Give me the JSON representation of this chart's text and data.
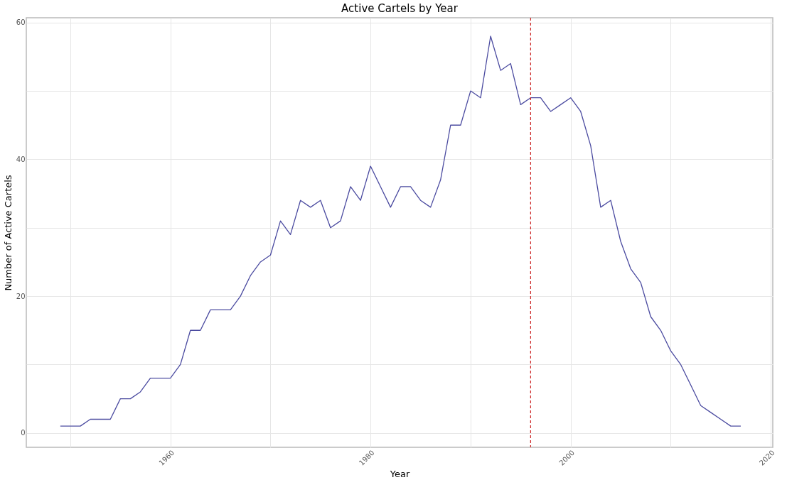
{
  "chart_data": {
    "type": "line",
    "title": "Active Cartels by Year",
    "xlabel": "Year",
    "ylabel": "Number of Active Cartels",
    "x": [
      1949,
      1950,
      1951,
      1952,
      1953,
      1954,
      1955,
      1956,
      1957,
      1958,
      1959,
      1960,
      1961,
      1962,
      1963,
      1964,
      1965,
      1966,
      1967,
      1968,
      1969,
      1970,
      1971,
      1972,
      1973,
      1974,
      1975,
      1976,
      1977,
      1978,
      1979,
      1980,
      1981,
      1982,
      1983,
      1984,
      1985,
      1986,
      1987,
      1988,
      1989,
      1990,
      1991,
      1992,
      1993,
      1994,
      1995,
      1996,
      1997,
      1998,
      1999,
      2000,
      2001,
      2002,
      2003,
      2004,
      2005,
      2006,
      2007,
      2008,
      2009,
      2010,
      2011,
      2012,
      2013,
      2014,
      2015,
      2016,
      2017
    ],
    "series": [
      {
        "color": "#4b4ba0",
        "values": [
          1,
          1,
          1,
          2,
          2,
          2,
          5,
          5,
          6,
          8,
          8,
          8,
          10,
          15,
          15,
          18,
          18,
          18,
          20,
          23,
          25,
          26,
          31,
          29,
          34,
          33,
          34,
          30,
          31,
          36,
          34,
          39,
          36,
          33,
          36,
          36,
          34,
          33,
          37,
          45,
          45,
          50,
          49,
          58,
          53,
          54,
          48,
          49,
          49,
          47,
          48,
          49,
          47,
          42,
          33,
          34,
          28,
          24,
          22,
          17,
          15,
          12,
          10,
          7,
          4,
          3,
          2,
          1,
          1
        ]
      }
    ],
    "xlim": [
      1945.6,
      2020.2
    ],
    "ylim": [
      -2.1,
      60.7
    ],
    "xticks": [
      {
        "value": 1950,
        "label": null
      },
      1960,
      {
        "value": 1970,
        "label": null
      },
      1980,
      {
        "value": 1990,
        "label": null
      },
      2000,
      {
        "value": 2010,
        "label": null
      },
      2020
    ],
    "yticks": [
      0,
      {
        "value": 10,
        "label": null
      },
      20,
      {
        "value": 30,
        "label": null
      },
      40,
      {
        "value": 50,
        "label": null
      },
      60
    ],
    "ref_lines": [
      {
        "axis": "x",
        "value": 1996,
        "color": "#cc2222",
        "line_style": "dashed"
      }
    ],
    "grid": true,
    "marker": "none",
    "line_style": "solid"
  }
}
